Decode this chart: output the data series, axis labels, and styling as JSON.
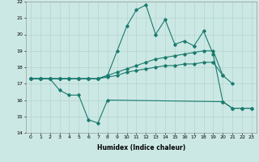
{
  "xlabel": "Humidex (Indice chaleur)",
  "ylim": [
    14,
    22
  ],
  "xlim": [
    -0.5,
    23.5
  ],
  "yticks": [
    14,
    15,
    16,
    17,
    18,
    19,
    20,
    21,
    22
  ],
  "xticks": [
    0,
    1,
    2,
    3,
    4,
    5,
    6,
    7,
    8,
    9,
    10,
    11,
    12,
    13,
    14,
    15,
    16,
    17,
    18,
    19,
    20,
    21,
    22,
    23
  ],
  "color": "#1a7a6e",
  "bg_color": "#cce8e4",
  "grid_color": "#aacfcb",
  "line1_x": [
    0,
    1,
    2,
    3,
    4,
    5,
    6,
    7,
    8,
    20,
    21,
    22,
    23
  ],
  "line1_y": [
    17.3,
    17.3,
    17.3,
    16.6,
    16.3,
    16.3,
    14.8,
    14.6,
    16.0,
    15.9,
    15.5,
    15.5,
    15.5
  ],
  "line2_x": [
    0,
    1,
    2,
    3,
    4,
    5,
    6,
    7,
    8,
    9,
    10,
    11,
    12,
    13,
    14,
    15,
    16,
    17,
    18,
    19,
    20
  ],
  "line2_y": [
    17.3,
    17.3,
    17.3,
    17.3,
    17.3,
    17.3,
    17.3,
    17.3,
    17.4,
    17.5,
    17.7,
    17.8,
    17.9,
    18.0,
    18.1,
    18.1,
    18.2,
    18.2,
    18.3,
    18.3,
    17.5
  ],
  "line3_x": [
    0,
    1,
    2,
    3,
    4,
    5,
    6,
    7,
    8,
    9,
    10,
    11,
    12,
    13,
    14,
    15,
    16,
    17,
    18,
    19,
    20,
    21,
    22,
    23
  ],
  "line3_y": [
    17.3,
    17.3,
    17.3,
    17.3,
    17.3,
    17.3,
    17.3,
    17.3,
    17.5,
    19.0,
    20.5,
    21.5,
    21.8,
    20.0,
    20.9,
    19.4,
    19.6,
    19.3,
    20.2,
    18.8,
    15.9,
    15.5,
    15.5,
    15.5
  ],
  "line4_x": [
    0,
    1,
    2,
    3,
    4,
    5,
    6,
    7,
    8,
    9,
    10,
    11,
    12,
    13,
    14,
    15,
    16,
    17,
    18,
    19,
    20,
    21
  ],
  "line4_y": [
    17.3,
    17.3,
    17.3,
    17.3,
    17.3,
    17.3,
    17.3,
    17.3,
    17.5,
    17.7,
    17.9,
    18.1,
    18.3,
    18.5,
    18.6,
    18.7,
    18.8,
    18.9,
    19.0,
    19.0,
    17.5,
    17.0
  ],
  "tick_fontsize": 4.5,
  "xlabel_fontsize": 5.5,
  "lw": 0.8,
  "ms": 1.8
}
